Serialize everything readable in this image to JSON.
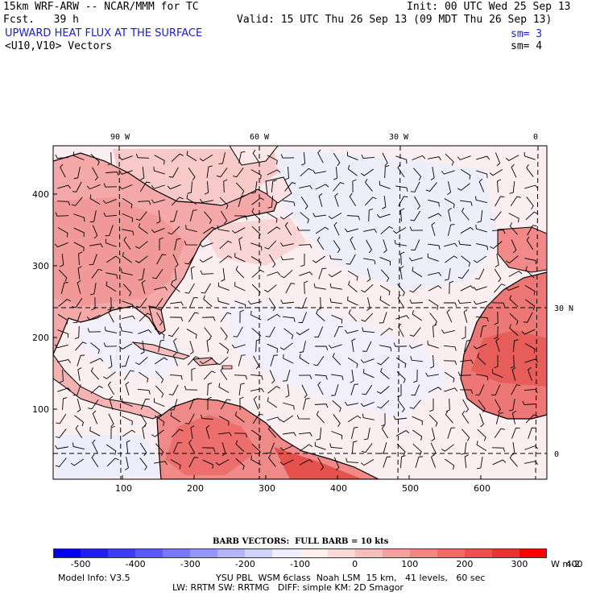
{
  "header": {
    "model_line": "15km WRF-ARW -- NCAR/MMM for TC",
    "fcst_line": "Fcst.   39 h",
    "init_line": "Init: 00 UTC Wed 25 Sep 13",
    "valid_line": "Valid: 15 UTC Thu 26 Sep 13 (09 MDT Thu 26 Sep 13)",
    "field_title": "UPWARD HEAT FLUX AT THE SURFACE",
    "vector_title": "<U10,V10> Vectors",
    "field_smooth": "sm= 3",
    "vector_smooth": "sm= 4"
  },
  "map": {
    "top_lon_labels": [
      "90 W",
      "60 W",
      "30 W",
      "0"
    ],
    "right_lat_labels": [
      "30 N",
      "0"
    ],
    "left_y_ticks": [
      "400",
      "300",
      "200",
      "100"
    ],
    "bottom_x_ticks": [
      "100",
      "200",
      "300",
      "400",
      "500",
      "600"
    ],
    "regions": [
      "North America",
      "Caribbean",
      "South America",
      "Iberia",
      "West Africa",
      "Atlantic Ocean"
    ]
  },
  "barb_legend": "BARB VECTORS:  FULL BARB = 10 kts",
  "colorbar": {
    "labels": [
      "-500",
      "-400",
      "-300",
      "-200",
      "-100",
      "0",
      "100",
      "200",
      "300",
      "400"
    ],
    "units": "W m-2",
    "colors": [
      "#0000f0",
      "#1e1ef5",
      "#3c3cf8",
      "#5a5afa",
      "#7878fb",
      "#9696fc",
      "#b4b4fd",
      "#d2d2fe",
      "#ecedfe",
      "#fff0f0",
      "#fcd8d6",
      "#f9bdba",
      "#f7a19e",
      "#f48682",
      "#f26a66",
      "#ef4f4a",
      "#ed332e",
      "#ff0000"
    ]
  },
  "footer": {
    "line1_left": "Model Info: V3.5",
    "line1_right": "YSU PBL  WSM 6class  Noah LSM  15 km,   41 levels,   60 sec",
    "line2": "LW: RRTM SW: RRTMG   DIFF: simple KM: 2D Smagor"
  }
}
